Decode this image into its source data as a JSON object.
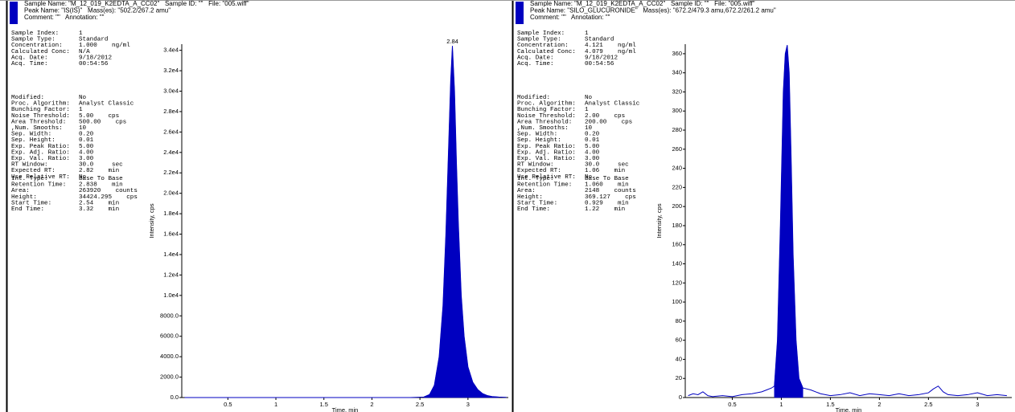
{
  "chart_data": [
    {
      "type": "line",
      "header": [
        "Sample Name: \"M_12_019_K2EDTA_A_CC02\"   Sample ID: \"\"   File: \"005.wiff\"",
        "Peak Name: \"IS(IS)\"   Mass(es): \"502.2/267.2 amu\"",
        "Comment: \"\"   Annotation: \"\""
      ],
      "param_groups": [
        [
          [
            "Sample Index:",
            "1"
          ],
          [
            "Sample Type:",
            "Standard"
          ],
          [
            "Concentration:",
            "1.000    ng/ml"
          ],
          [
            "Calculated Conc:",
            "N/A"
          ],
          [
            "Acq. Date:",
            "9/18/2012"
          ],
          [
            "Acq. Time:",
            "00:54:56"
          ]
        ],
        [
          [
            "Modified:",
            "No"
          ],
          [
            "Proc. Algorithm:",
            "Analyst Classic"
          ],
          [
            "Bunching Factor:",
            "1"
          ],
          [
            "Noise Threshold:",
            "5.00    cps"
          ],
          [
            "Area Threshold:",
            "500.00    cps"
          ],
          [
            ",Num. Smooths:",
            "10"
          ],
          [
            "Sep. Width:",
            "0.20"
          ],
          [
            "Sep. Height:",
            "0.01"
          ],
          [
            "Exp. Peak Ratio:",
            "5.00"
          ],
          [
            "Exp. Adj. Ratio:",
            "4.00"
          ],
          [
            "Exp. Val. Ratio:",
            "3.00"
          ],
          [
            "RT Window:",
            "30.0     sec"
          ],
          [
            "Expected RT:",
            "2.82    min"
          ],
          [
            "Use Relative RT:",
            "No"
          ]
        ],
        [
          [
            "Int. Type:",
            "Base To Base"
          ],
          [
            "Retention Time:",
            "2.838    min"
          ],
          [
            "Area:",
            "263920    counts"
          ],
          [
            "Height:",
            "34424.295    cps"
          ],
          [
            "Start Time:",
            "2.54    min"
          ],
          [
            "End Time:",
            "3.32    min"
          ]
        ]
      ],
      "xlabel": "Time, min",
      "ylabel": "Intensity, cps",
      "color": "#0000c0",
      "annotation": "2.84",
      "fill_xrange": [
        2.54,
        3.32
      ],
      "x": [
        0.05,
        0.2,
        0.4,
        0.6,
        0.8,
        1.0,
        1.2,
        1.4,
        1.6,
        1.8,
        2.0,
        2.2,
        2.4,
        2.54,
        2.6,
        2.65,
        2.7,
        2.74,
        2.77,
        2.8,
        2.82,
        2.838,
        2.86,
        2.88,
        2.9,
        2.93,
        2.96,
        3.0,
        3.05,
        3.1,
        3.15,
        3.2,
        3.25,
        3.32,
        3.4
      ],
      "values": [
        0,
        0,
        0,
        0,
        0,
        0,
        0,
        0,
        0,
        0,
        0,
        0,
        0,
        50,
        300,
        1200,
        4000,
        9000,
        16000,
        25000,
        31000,
        34424,
        30000,
        23000,
        17000,
        10000,
        6000,
        3000,
        1500,
        800,
        400,
        200,
        100,
        50,
        20
      ],
      "xlim": [
        0.02,
        3.42
      ],
      "xticks": [
        0.5,
        1.0,
        1.5,
        2.0,
        2.5,
        3.0
      ],
      "ylim": [
        0,
        34600
      ],
      "yticks": [
        {
          "value": 0,
          "label": "0.0"
        },
        {
          "value": 2000,
          "label": "2000.0"
        },
        {
          "value": 4000,
          "label": "4000.0"
        },
        {
          "value": 6000,
          "label": "6000.0"
        },
        {
          "value": 8000,
          "label": "8000.0"
        },
        {
          "value": 10000,
          "label": "1.0e4"
        },
        {
          "value": 12000,
          "label": "1.2e4"
        },
        {
          "value": 14000,
          "label": "1.4e4"
        },
        {
          "value": 16000,
          "label": "1.6e4"
        },
        {
          "value": 18000,
          "label": "1.8e4"
        },
        {
          "value": 20000,
          "label": "2.0e4"
        },
        {
          "value": 22000,
          "label": "2.2e4"
        },
        {
          "value": 24000,
          "label": "2.4e4"
        },
        {
          "value": 26000,
          "label": "2.6e4"
        },
        {
          "value": 28000,
          "label": "2.8e4"
        },
        {
          "value": 30000,
          "label": "3.0e4"
        },
        {
          "value": 32000,
          "label": "3.2e4"
        },
        {
          "value": 34000,
          "label": "3.4e4"
        }
      ]
    },
    {
      "type": "line",
      "header": [
        "Sample Name: \"M_12_019_K2EDTA_A_CC02\"   Sample ID: \"\"   File: \"005.wiff\"",
        "Peak Name: \"SILO_GLUCURONIDE\"   Mass(es): \"672.2/479.3 amu,672.2/261.2 amu\"",
        "Comment: \"\"   Annotation: \"\""
      ],
      "param_groups": [
        [
          [
            "Sample Index:",
            "1"
          ],
          [
            "Sample Type:",
            "Standard"
          ],
          [
            "Concentration:",
            "4.121    ng/ml"
          ],
          [
            "Calculated Conc:",
            "4.079    ng/ml"
          ],
          [
            "Acq. Date:",
            "9/18/2012"
          ],
          [
            "Acq. Time:",
            "00:54:56"
          ]
        ],
        [
          [
            "Modified:",
            "No"
          ],
          [
            "Proc. Algorithm:",
            "Analyst Classic"
          ],
          [
            "Bunching Factor:",
            "1"
          ],
          [
            "Noise Threshold:",
            "2.00    cps"
          ],
          [
            "Area Threshold:",
            "200.00    cps"
          ],
          [
            ",Num. Smooths:",
            "10"
          ],
          [
            "Sep. Width:",
            "0.20"
          ],
          [
            "Sep. Height:",
            "0.01"
          ],
          [
            "Exp. Peak Ratio:",
            "5.00"
          ],
          [
            "Exp. Adj. Ratio:",
            "4.00"
          ],
          [
            "Exp. Val. Ratio:",
            "3.00"
          ],
          [
            "RT Window:",
            "30.0     sec"
          ],
          [
            "Expected RT:",
            "1.06    min"
          ],
          [
            "Use Relative RT:",
            "No"
          ]
        ],
        [
          [
            "Int. Type:",
            "Base To Base"
          ],
          [
            "Retention Time:",
            "1.060    min"
          ],
          [
            "Area:",
            "2148    counts"
          ],
          [
            "Height:",
            "369.127    cps"
          ],
          [
            "Start Time:",
            "0.929    min"
          ],
          [
            "End Time:",
            "1.22    min"
          ]
        ]
      ],
      "xlabel": "Time, min",
      "ylabel": "Intensity, cps",
      "color": "#0000c0",
      "fill_xrange": [
        0.929,
        1.22
      ],
      "x": [
        0.05,
        0.1,
        0.15,
        0.2,
        0.25,
        0.3,
        0.4,
        0.5,
        0.6,
        0.7,
        0.8,
        0.85,
        0.9,
        0.929,
        0.96,
        0.99,
        1.02,
        1.04,
        1.06,
        1.08,
        1.1,
        1.12,
        1.15,
        1.18,
        1.22,
        1.3,
        1.4,
        1.5,
        1.6,
        1.7,
        1.8,
        1.9,
        2.0,
        2.1,
        2.2,
        2.3,
        2.4,
        2.5,
        2.55,
        2.6,
        2.65,
        2.7,
        2.8,
        2.9,
        3.0,
        3.1,
        3.2,
        3.3
      ],
      "values": [
        2,
        4,
        3,
        6,
        2,
        1,
        2,
        1,
        3,
        4,
        6,
        8,
        10,
        12,
        60,
        180,
        320,
        360,
        369,
        340,
        250,
        150,
        60,
        20,
        10,
        8,
        4,
        2,
        3,
        5,
        2,
        4,
        3,
        2,
        4,
        2,
        3,
        5,
        9,
        12,
        6,
        3,
        2,
        3,
        5,
        2,
        3,
        2
      ],
      "xlim": [
        0.02,
        3.35
      ],
      "xticks": [
        0.5,
        1.0,
        1.5,
        2.0,
        2.5,
        3.0
      ],
      "ylim": [
        0,
        370
      ],
      "yticks": [
        0,
        20,
        40,
        60,
        80,
        100,
        120,
        140,
        160,
        180,
        200,
        220,
        240,
        260,
        280,
        300,
        320,
        340,
        360
      ]
    }
  ]
}
